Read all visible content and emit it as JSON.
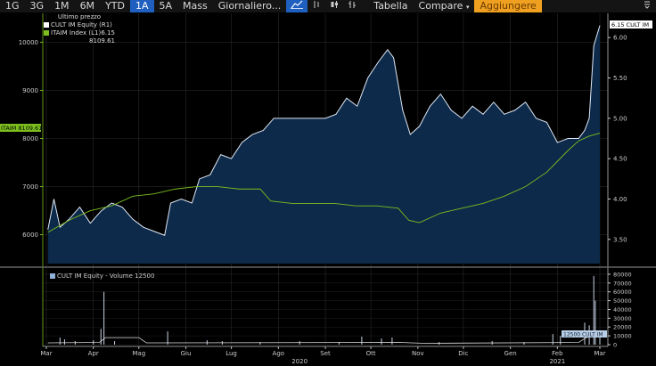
{
  "toolbar": {
    "periods": [
      "1G",
      "3G",
      "1M",
      "6M",
      "YTD",
      "1A",
      "5A",
      "Mass"
    ],
    "active_period": "1A",
    "frequency": "Giornaliero...",
    "chart_icons": [
      "line-chart-icon",
      "bar-chart-icon",
      "candlestick-icon",
      "hilo-icon"
    ],
    "table_label": "Tabella",
    "compare_label": "Compare",
    "compare_arrow": "▾",
    "add_label": "Aggiungere",
    "menu_icon": "menu-icon"
  },
  "colors": {
    "price": "#dfe8f5",
    "price_fill": "#0d2a4a",
    "index": "#7cbf1e",
    "volume": "#c8d4e4",
    "active_tab": "#1f5fbf",
    "add_button": "#f0a020"
  },
  "chart_data": [
    {
      "type": "line",
      "legend": {
        "header": "Ultimo prezzo",
        "placement": "top-left"
      },
      "series": [
        {
          "name": "CULT IM Equity  (R1)",
          "last": "6.15",
          "axis": "right",
          "style": "area",
          "points": [
            [
              "2020-03-02",
              3.62
            ],
            [
              "2020-03-06",
              4.0
            ],
            [
              "2020-03-10",
              3.65
            ],
            [
              "2020-03-16",
              3.75
            ],
            [
              "2020-03-23",
              3.9
            ],
            [
              "2020-03-30",
              3.7
            ],
            [
              "2020-04-06",
              3.85
            ],
            [
              "2020-04-13",
              3.95
            ],
            [
              "2020-04-20",
              3.9
            ],
            [
              "2020-04-27",
              3.75
            ],
            [
              "2020-05-04",
              3.65
            ],
            [
              "2020-05-11",
              3.6
            ],
            [
              "2020-05-18",
              3.55
            ],
            [
              "2020-05-22",
              3.95
            ],
            [
              "2020-05-29",
              4.0
            ],
            [
              "2020-06-05",
              3.95
            ],
            [
              "2020-06-10",
              4.25
            ],
            [
              "2020-06-17",
              4.3
            ],
            [
              "2020-06-24",
              4.55
            ],
            [
              "2020-07-01",
              4.5
            ],
            [
              "2020-07-08",
              4.7
            ],
            [
              "2020-07-15",
              4.8
            ],
            [
              "2020-07-22",
              4.85
            ],
            [
              "2020-07-29",
              5.0
            ],
            [
              "2020-08-05",
              5.0
            ],
            [
              "2020-08-15",
              5.0
            ],
            [
              "2020-08-25",
              5.0
            ],
            [
              "2020-09-01",
              5.0
            ],
            [
              "2020-09-08",
              5.05
            ],
            [
              "2020-09-15",
              5.25
            ],
            [
              "2020-09-22",
              5.15
            ],
            [
              "2020-09-29",
              5.5
            ],
            [
              "2020-10-06",
              5.7
            ],
            [
              "2020-10-12",
              5.85
            ],
            [
              "2020-10-16",
              5.75
            ],
            [
              "2020-10-22",
              5.1
            ],
            [
              "2020-10-27",
              4.8
            ],
            [
              "2020-11-02",
              4.9
            ],
            [
              "2020-11-09",
              5.15
            ],
            [
              "2020-11-16",
              5.3
            ],
            [
              "2020-11-23",
              5.1
            ],
            [
              "2020-11-30",
              5.0
            ],
            [
              "2020-12-07",
              5.15
            ],
            [
              "2020-12-14",
              5.05
            ],
            [
              "2020-12-21",
              5.2
            ],
            [
              "2020-12-28",
              5.05
            ],
            [
              "2021-01-04",
              5.1
            ],
            [
              "2021-01-11",
              5.2
            ],
            [
              "2021-01-18",
              5.0
            ],
            [
              "2021-01-25",
              4.95
            ],
            [
              "2021-02-01",
              4.7
            ],
            [
              "2021-02-08",
              4.75
            ],
            [
              "2021-02-15",
              4.75
            ],
            [
              "2021-02-19",
              4.85
            ],
            [
              "2021-02-22",
              5.0
            ],
            [
              "2021-02-25",
              5.9
            ],
            [
              "2021-03-01",
              6.15
            ]
          ]
        },
        {
          "name": "ITAIM Index  (L1)",
          "last": "8109.61",
          "axis": "left",
          "style": "line",
          "points": [
            [
              "2020-03-02",
              6050
            ],
            [
              "2020-03-16",
              6300
            ],
            [
              "2020-03-30",
              6500
            ],
            [
              "2020-04-13",
              6600
            ],
            [
              "2020-04-27",
              6800
            ],
            [
              "2020-05-11",
              6850
            ],
            [
              "2020-05-25",
              6950
            ],
            [
              "2020-06-08",
              7000
            ],
            [
              "2020-06-22",
              7000
            ],
            [
              "2020-07-06",
              6950
            ],
            [
              "2020-07-20",
              6950
            ],
            [
              "2020-07-27",
              6700
            ],
            [
              "2020-08-10",
              6650
            ],
            [
              "2020-08-24",
              6650
            ],
            [
              "2020-09-07",
              6650
            ],
            [
              "2020-09-21",
              6600
            ],
            [
              "2020-10-05",
              6600
            ],
            [
              "2020-10-19",
              6550
            ],
            [
              "2020-10-26",
              6300
            ],
            [
              "2020-11-02",
              6250
            ],
            [
              "2020-11-16",
              6450
            ],
            [
              "2020-11-30",
              6550
            ],
            [
              "2020-12-14",
              6650
            ],
            [
              "2020-12-28",
              6800
            ],
            [
              "2021-01-11",
              7000
            ],
            [
              "2021-01-25",
              7300
            ],
            [
              "2021-02-08",
              7750
            ],
            [
              "2021-02-15",
              7950
            ],
            [
              "2021-02-22",
              8050
            ],
            [
              "2021-03-01",
              8110
            ]
          ]
        }
      ],
      "left_axis": {
        "ticks": [
          "6000",
          "7000",
          "8000",
          "9000",
          "10000"
        ],
        "range": [
          5400,
          10600
        ]
      },
      "right_axis": {
        "ticks": [
          "3.50",
          "4.00",
          "4.50",
          "5.00",
          "5.50",
          "6.00"
        ],
        "range": [
          3.2,
          6.3
        ]
      },
      "right_label": "6.15 CULT IM",
      "left_label": "ITAIM 8109.61",
      "grid": true
    },
    {
      "type": "bar",
      "title": "CULT IM Equity - Volume 12500",
      "right_axis": {
        "ticks": [
          "0",
          "10000",
          "20000",
          "30000",
          "40000",
          "50000",
          "60000",
          "70000",
          "80000"
        ],
        "range": [
          0,
          82000
        ]
      },
      "right_label": "12500 CULT IM",
      "points": [
        [
          "2020-03-10",
          8000
        ],
        [
          "2020-03-13",
          6000
        ],
        [
          "2020-03-20",
          4000
        ],
        [
          "2020-04-01",
          5000
        ],
        [
          "2020-04-06",
          18000
        ],
        [
          "2020-04-08",
          60000
        ],
        [
          "2020-04-15",
          4000
        ],
        [
          "2020-05-20",
          15000
        ],
        [
          "2020-06-15",
          5000
        ],
        [
          "2020-06-25",
          4000
        ],
        [
          "2020-07-20",
          3000
        ],
        [
          "2020-08-15",
          4000
        ],
        [
          "2020-09-10",
          3000
        ],
        [
          "2020-09-25",
          9000
        ],
        [
          "2020-10-08",
          7000
        ],
        [
          "2020-10-15",
          8000
        ],
        [
          "2020-11-15",
          3000
        ],
        [
          "2020-12-20",
          4000
        ],
        [
          "2021-01-10",
          3000
        ],
        [
          "2021-01-29",
          12000
        ],
        [
          "2021-02-03",
          10000
        ],
        [
          "2021-02-19",
          25000
        ],
        [
          "2021-02-22",
          22000
        ],
        [
          "2021-02-25",
          78000
        ],
        [
          "2021-02-26",
          50000
        ],
        [
          "2021-03-01",
          12500
        ]
      ],
      "baseline": [
        [
          "2020-03-02",
          2000
        ],
        [
          "2020-04-05",
          2500
        ],
        [
          "2020-04-09",
          8000
        ],
        [
          "2020-05-01",
          8000
        ],
        [
          "2020-05-06",
          2000
        ],
        [
          "2020-10-20",
          2500
        ],
        [
          "2020-11-05",
          1500
        ],
        [
          "2021-02-15",
          2500
        ],
        [
          "2021-02-20",
          8000
        ],
        [
          "2021-02-26",
          10000
        ],
        [
          "2021-03-01",
          14000
        ]
      ]
    }
  ],
  "x_axis": {
    "months": [
      [
        "2020-03-01",
        "Mar"
      ],
      [
        "2020-04-01",
        "Apr"
      ],
      [
        "2020-05-01",
        "Mag"
      ],
      [
        "2020-06-01",
        "Giu"
      ],
      [
        "2020-07-01",
        "Lug"
      ],
      [
        "2020-08-01",
        "Ago"
      ],
      [
        "2020-09-01",
        "Set"
      ],
      [
        "2020-10-01",
        "Ott"
      ],
      [
        "2020-11-01",
        "Nov"
      ],
      [
        "2020-12-01",
        "Dic"
      ],
      [
        "2021-01-01",
        "Gen"
      ],
      [
        "2021-02-01",
        "Feb"
      ],
      [
        "2021-03-01",
        "Mar"
      ]
    ],
    "years": [
      [
        "2020-08-15",
        "2020"
      ],
      [
        "2021-02-01",
        "2021"
      ]
    ]
  }
}
